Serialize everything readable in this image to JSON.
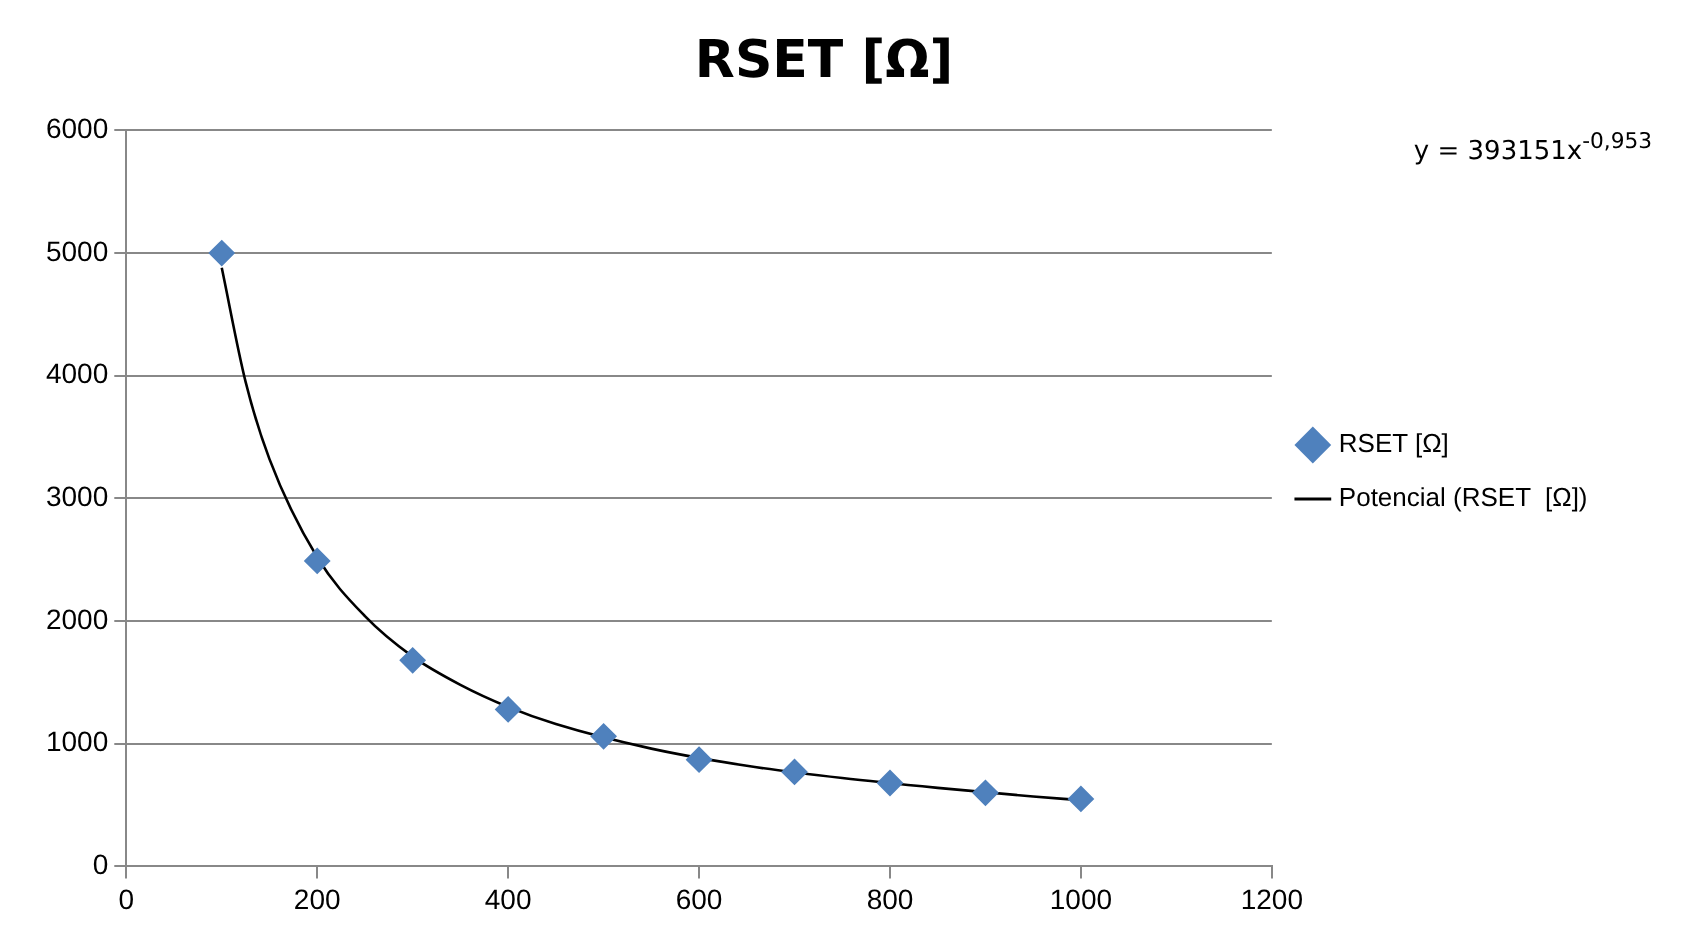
{
  "chart_data": {
    "type": "scatter",
    "title": "RSET [Ω]",
    "x": [
      100,
      200,
      300,
      400,
      500,
      600,
      700,
      800,
      900,
      1000
    ],
    "series": [
      {
        "name": "RSET [Ω]",
        "color": "#4f81bd",
        "values": [
          5000,
          2490,
          1680,
          1280,
          1060,
          870,
          770,
          680,
          600,
          550
        ]
      },
      {
        "name": "Potencial (RSET  [Ω])",
        "type": "line",
        "color": "#000000",
        "marker": "none",
        "x": [
          100,
          125,
          150,
          200,
          250,
          300,
          350,
          400,
          450,
          550,
          650,
          750,
          850,
          950,
          1000
        ],
        "values": [
          4880,
          3950,
          3320,
          2520,
          2040,
          1710,
          1480,
          1300,
          1160,
          960,
          820,
          720,
          640,
          570,
          540
        ]
      }
    ],
    "xlim": [
      0,
      1200
    ],
    "xticks": [
      0,
      200,
      400,
      600,
      800,
      1000,
      1200
    ],
    "ylim": [
      0,
      6000
    ],
    "yticks": [
      0,
      1000,
      2000,
      3000,
      4000,
      5000,
      6000
    ],
    "grid": "y",
    "legend": "right",
    "marker": "diamond",
    "annotations": [
      "y = 393151x$^{-0,953}$"
    ]
  }
}
